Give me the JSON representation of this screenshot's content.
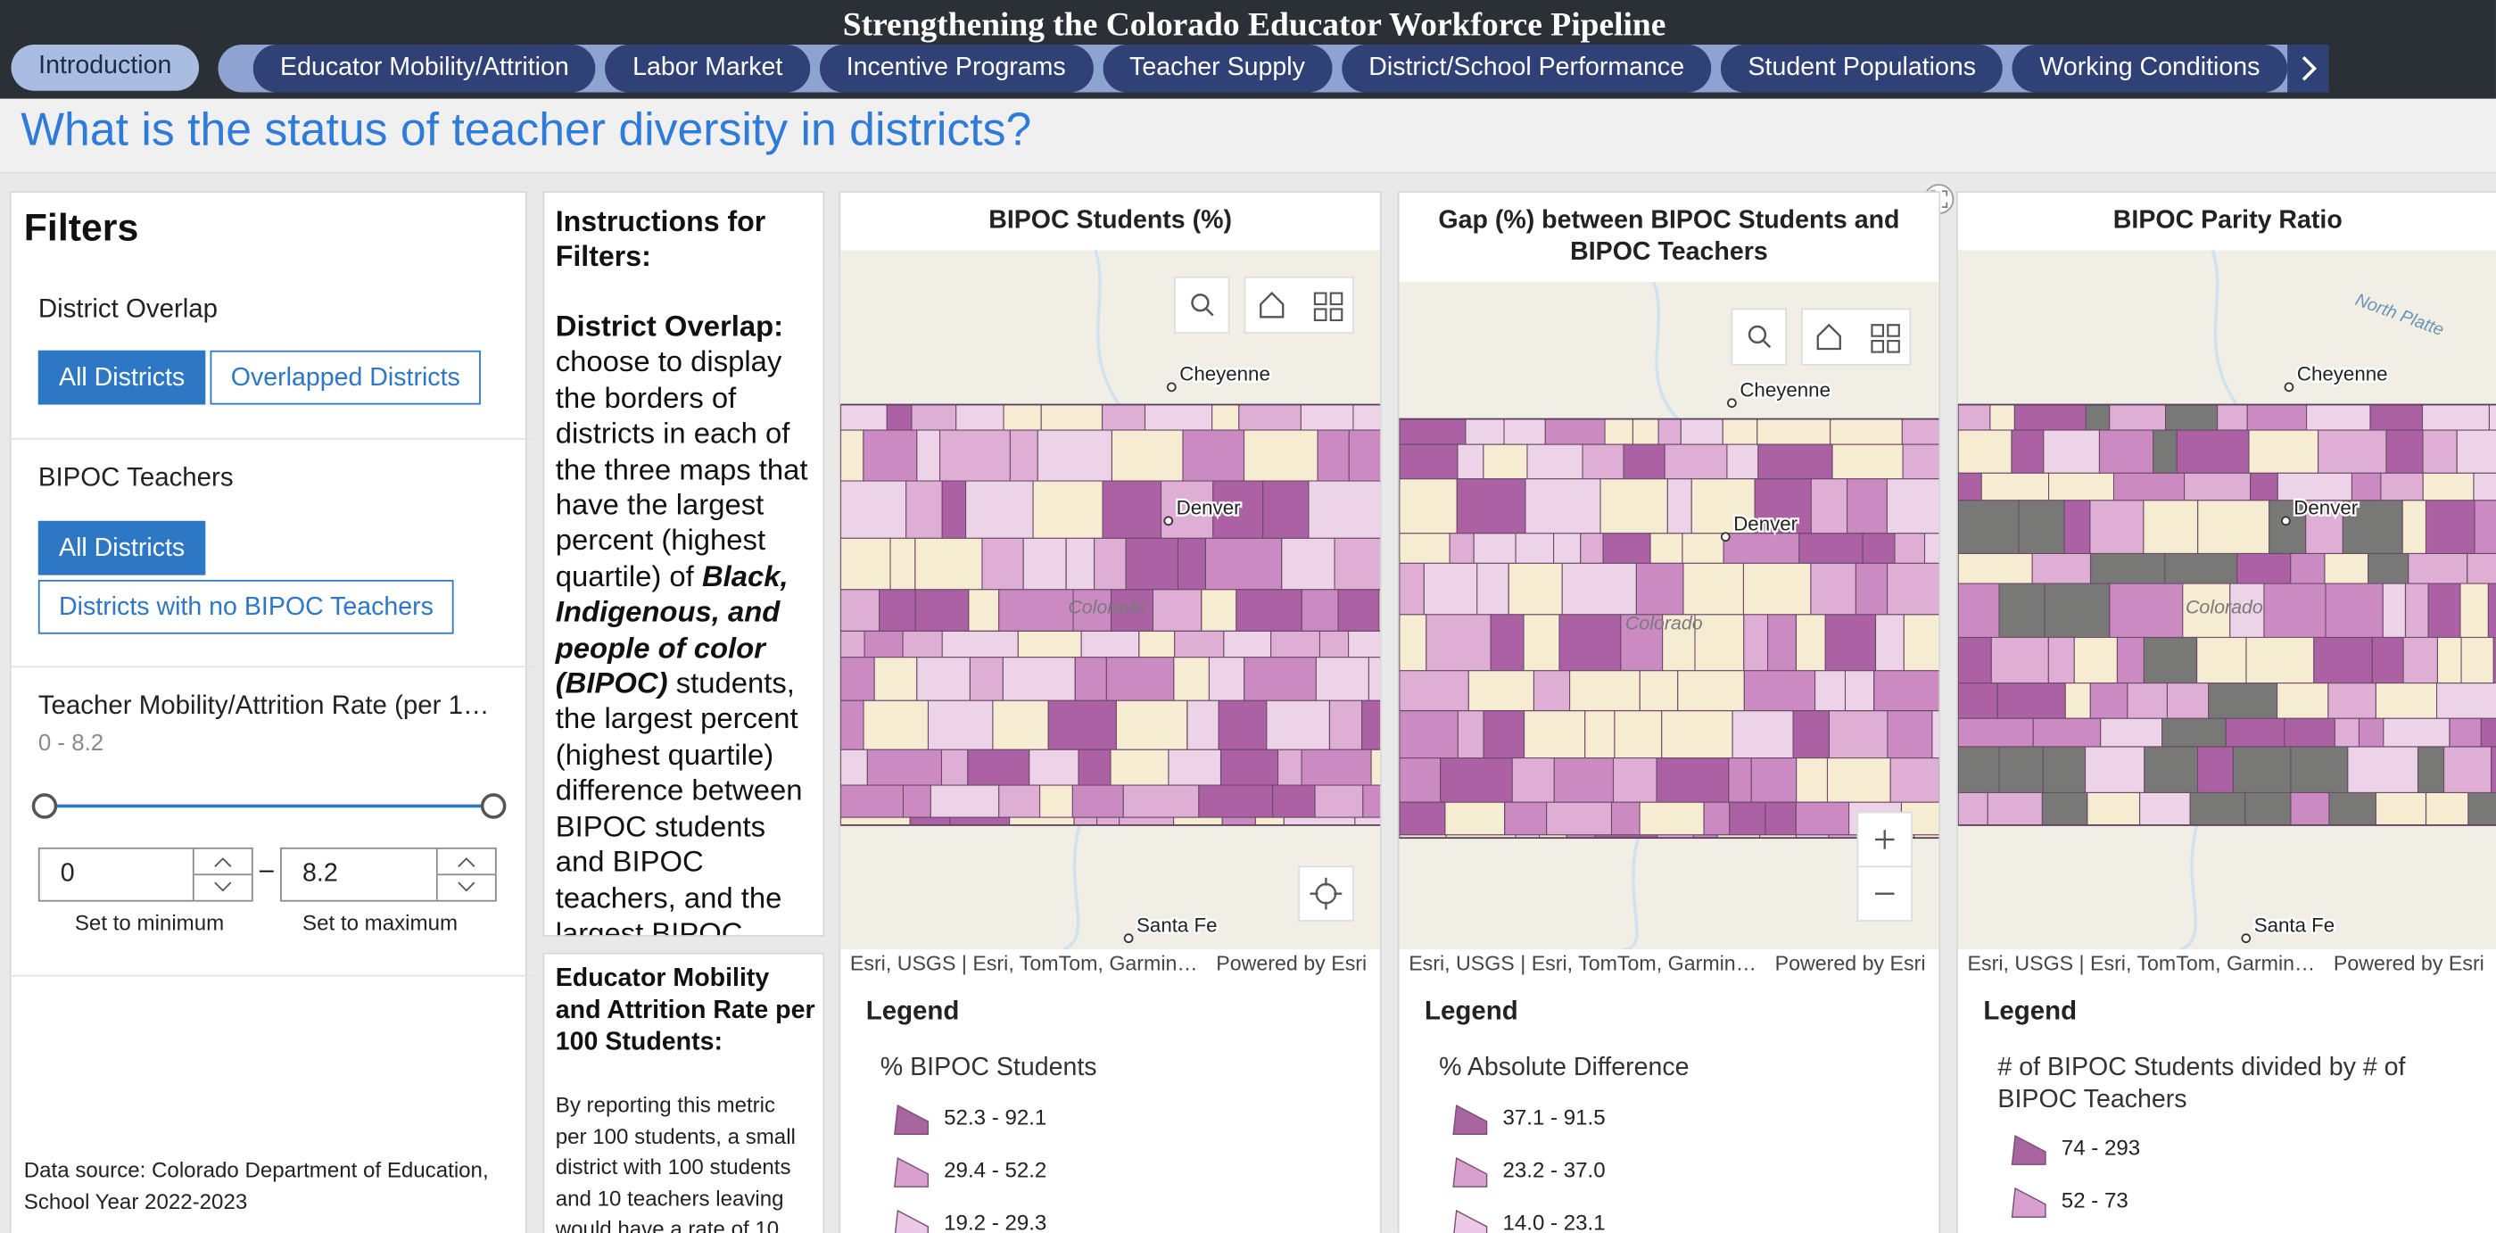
{
  "header": {
    "title": "Strengthening the Colorado Educator Workforce Pipeline"
  },
  "tabs": {
    "intro": "Introduction",
    "items": [
      "Educator Mobility/Attrition",
      "Labor Market",
      "Incentive Programs",
      "Teacher Supply",
      "District/School Performance",
      "Student Populations",
      "Working Conditions"
    ]
  },
  "page": {
    "heading": "What is the status of teacher diversity in districts?"
  },
  "filters": {
    "title": "Filters",
    "groups": [
      {
        "label": "District Overlap",
        "options": [
          "All Districts",
          "Overlapped Districts"
        ]
      },
      {
        "label": "BIPOC Teachers",
        "options": [
          "All Districts",
          "Districts with no BIPOC Teachers"
        ]
      }
    ],
    "range": {
      "label": "Teacher Mobility/Attrition Rate (per 1…",
      "summary": "0 - 8.2",
      "min": 0,
      "max": 8.2,
      "min_hint": "Set to minimum",
      "max_hint": "Set to maximum"
    },
    "source": "Data source: Colorado Department of Education, School Year 2022-2023"
  },
  "instructions": {
    "title": "Instructions for Filters:",
    "lead": "District Overlap:",
    "text1": "choose to display the borders of districts in each of the three maps that have the largest percent (highest quartile) of",
    "emphasis": "Black, Indigenous, and people of color (BIPOC)",
    "text2": "students, the largest percent (highest quartile) difference between BIPOC students and BIPOC teachers, and the largest BIPOC"
  },
  "notes": {
    "title": "Educator Mobility and Attrition Rate per 100 Students:",
    "body": "By reporting this metric per 100 students, a small district with 100 students and 10 teachers leaving would have a rate of 10"
  },
  "maps": [
    {
      "title": "BIPOC Students (%)",
      "places": [
        "Cheyenne",
        "Denver",
        "Colorado",
        "Santa Fe"
      ],
      "attribution": "Esri, USGS | Esri, TomTom, Garmin…",
      "powered": "Powered by Esri",
      "legend": "Legend",
      "field": "% BIPOC Students",
      "items": [
        "52.3 - 92.1",
        "29.4 - 52.2",
        "19.2 - 29.3"
      ]
    },
    {
      "title": "Gap (%) between BIPOC Students and BIPOC Teachers",
      "places": [
        "Cheyenne",
        "Denver",
        "Colorado"
      ],
      "attribution": "Esri, USGS | Esri, TomTom, Garmin…",
      "powered": "Powered by Esri",
      "legend": "Legend",
      "field": "% Absolute Difference",
      "items": [
        "37.1 - 91.5",
        "23.2 - 37.0",
        "14.0 - 23.1"
      ]
    },
    {
      "title": "BIPOC Parity Ratio",
      "places": [
        "Cheyenne",
        "Denver",
        "Colorado",
        "Santa Fe",
        "North Platte"
      ],
      "attribution": "Esri, USGS | Esri, TomTom, Garmin…",
      "powered": "Powered by Esri",
      "legend": "Legend",
      "field": "# of BIPOC Students divided by # of BIPOC Teachers",
      "items": [
        "74 - 293",
        "52 - 73"
      ]
    }
  ]
}
